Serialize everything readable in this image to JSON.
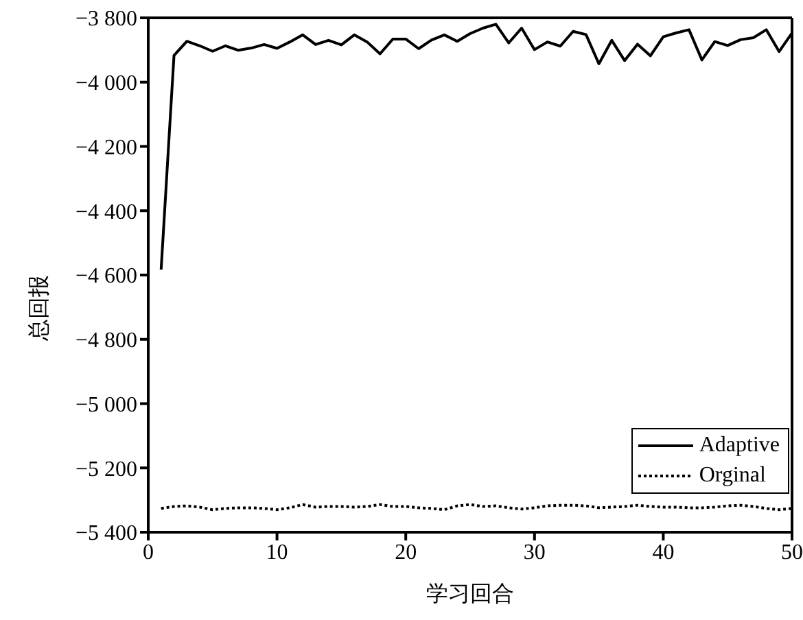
{
  "chart_data": {
    "type": "line",
    "xlabel": "学习回合",
    "ylabel": "总回报",
    "x": [
      1,
      2,
      3,
      4,
      5,
      6,
      7,
      8,
      9,
      10,
      11,
      12,
      13,
      14,
      15,
      16,
      17,
      18,
      19,
      20,
      21,
      22,
      23,
      24,
      25,
      26,
      27,
      28,
      29,
      30,
      31,
      32,
      33,
      34,
      35,
      36,
      37,
      38,
      39,
      40,
      41,
      42,
      43,
      44,
      45,
      46,
      47,
      48,
      49,
      50
    ],
    "series": [
      {
        "name": "Adaptive",
        "color": "#000000",
        "line_style": "solid",
        "values": [
          -4583,
          -3917,
          -3873,
          -3887,
          -3904,
          -3887,
          -3901,
          -3894,
          -3883,
          -3895,
          -3875,
          -3853,
          -3883,
          -3870,
          -3884,
          -3853,
          -3875,
          -3912,
          -3866,
          -3866,
          -3896,
          -3869,
          -3853,
          -3873,
          -3849,
          -3832,
          -3820,
          -3878,
          -3832,
          -3899,
          -3875,
          -3888,
          -3842,
          -3852,
          -3943,
          -3870,
          -3933,
          -3882,
          -3918,
          -3859,
          -3847,
          -3837,
          -3931,
          -3874,
          -3886,
          -3868,
          -3862,
          -3837,
          -3905,
          -3847
        ]
      },
      {
        "name": "Orginal",
        "color": "#000000",
        "line_style": "dotted",
        "values": [
          -5326,
          -5320,
          -5318,
          -5322,
          -5330,
          -5326,
          -5324,
          -5324,
          -5326,
          -5330,
          -5324,
          -5314,
          -5322,
          -5320,
          -5320,
          -5322,
          -5320,
          -5314,
          -5320,
          -5320,
          -5324,
          -5326,
          -5330,
          -5318,
          -5314,
          -5320,
          -5318,
          -5324,
          -5328,
          -5324,
          -5318,
          -5316,
          -5316,
          -5318,
          -5324,
          -5322,
          -5320,
          -5316,
          -5320,
          -5322,
          -5322,
          -5324,
          -5324,
          -5322,
          -5318,
          -5316,
          -5320,
          -5326,
          -5330,
          -5326
        ]
      }
    ],
    "xlim": [
      0,
      50
    ],
    "xticks": [
      0,
      10,
      20,
      30,
      40,
      50
    ],
    "ylim": [
      -5400,
      -3800
    ],
    "yticks": [
      {
        "value": -5400,
        "label": "−5 400"
      },
      {
        "value": -5200,
        "label": "−5 200"
      },
      {
        "value": -5000,
        "label": "−5 000"
      },
      {
        "value": -4800,
        "label": "−4 800"
      },
      {
        "value": -4600,
        "label": "−4 600"
      },
      {
        "value": -4400,
        "label": "−4 400"
      },
      {
        "value": -4200,
        "label": "−4 200"
      },
      {
        "value": -4000,
        "label": "−4 000"
      },
      {
        "value": -3800,
        "label": "−3 800"
      }
    ],
    "grid": false,
    "legend": "bottom right",
    "marker": "none"
  }
}
